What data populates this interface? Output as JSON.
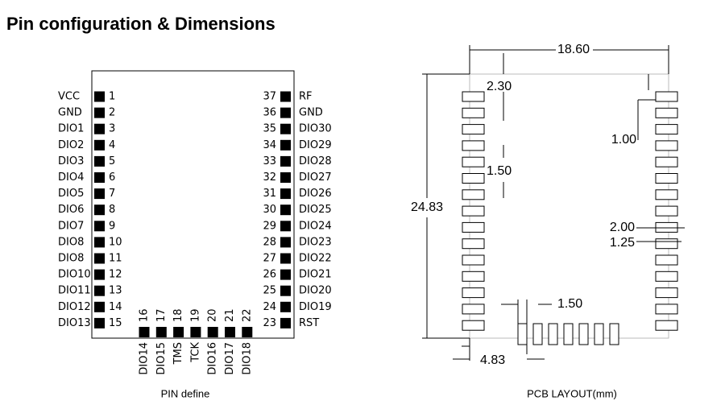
{
  "title": "Pin configuration & Dimensions",
  "pin_define": {
    "caption": "PIN define",
    "left_pins": [
      {
        "name": "VCC",
        "number": 1
      },
      {
        "name": "GND",
        "number": 2
      },
      {
        "name": "DIO1",
        "number": 3
      },
      {
        "name": "DIO2",
        "number": 4
      },
      {
        "name": "DIO3",
        "number": 5
      },
      {
        "name": "DIO4",
        "number": 6
      },
      {
        "name": "DIO5",
        "number": 7
      },
      {
        "name": "DIO6",
        "number": 8
      },
      {
        "name": "DIO7",
        "number": 9
      },
      {
        "name": "DIO8",
        "number": 10
      },
      {
        "name": "DIO8",
        "number": 11
      },
      {
        "name": "DIO10",
        "number": 12
      },
      {
        "name": "DIO11",
        "number": 13
      },
      {
        "name": "DIO12",
        "number": 14
      },
      {
        "name": "DIO13",
        "number": 15
      }
    ],
    "bottom_pins": [
      {
        "name": "DIO14",
        "number": 16
      },
      {
        "name": "DIO15",
        "number": 17
      },
      {
        "name": "TMS",
        "number": 18
      },
      {
        "name": "TCK",
        "number": 19
      },
      {
        "name": "DIO16",
        "number": 20
      },
      {
        "name": "DIO17",
        "number": 21
      },
      {
        "name": "DIO18",
        "number": 22
      }
    ],
    "right_pins": [
      {
        "name": "RF",
        "number": 37
      },
      {
        "name": "GND",
        "number": 36
      },
      {
        "name": "DIO30",
        "number": 35
      },
      {
        "name": "DIO29",
        "number": 34
      },
      {
        "name": "DIO28",
        "number": 33
      },
      {
        "name": "DIO27",
        "number": 32
      },
      {
        "name": "DIO26",
        "number": 31
      },
      {
        "name": "DIO25",
        "number": 30
      },
      {
        "name": "DIO24",
        "number": 29
      },
      {
        "name": "DIO23",
        "number": 28
      },
      {
        "name": "DIO22",
        "number": 27
      },
      {
        "name": "DIO21",
        "number": 26
      },
      {
        "name": "DIO20",
        "number": 25
      },
      {
        "name": "DIO19",
        "number": 24
      },
      {
        "name": "RST",
        "number": 23
      }
    ]
  },
  "pcb_layout": {
    "caption": "PCB LAYOUT(mm)",
    "dimensions": [
      "18.60",
      "2.30",
      "1.00",
      "1.50",
      "24.83",
      "2.00",
      "1.25",
      "1.50",
      "4.83"
    ]
  }
}
